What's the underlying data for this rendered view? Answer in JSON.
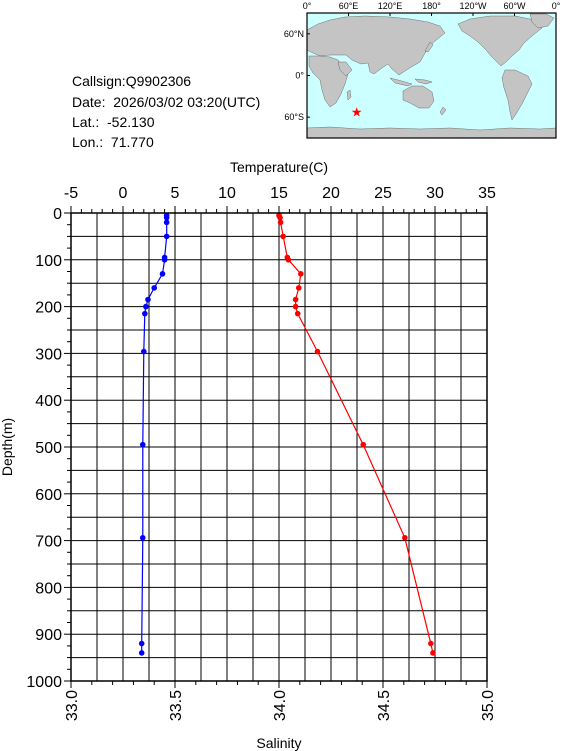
{
  "info": {
    "callsign": "Callsign:Q9902306",
    "date": "Date:  2026/03/02 03:20(UTC)",
    "lat": "Lat.:  -52.130",
    "lon": "Lon.:  71.770"
  },
  "map": {
    "lon_ticks": [
      "0°",
      "60°E",
      "120°E",
      "180°",
      "120°W",
      "60°W",
      "0°"
    ],
    "lat_ticks": [
      "60°N",
      "0°",
      "60°S"
    ],
    "float_position": {
      "lat": -52.13,
      "lon": 71.77
    },
    "colors": {
      "ocean": "#ccffff",
      "land": "#c4c4c4",
      "marker": "#ff0000"
    }
  },
  "chart_data": {
    "type": "line",
    "y_axis": {
      "label": "Depth(m)",
      "min": 0,
      "max": 1000,
      "inverted": true,
      "ticks": [
        "0",
        "100",
        "200",
        "300",
        "400",
        "500",
        "600",
        "700",
        "800",
        "900",
        "1000"
      ]
    },
    "x_top": {
      "label": "Temperature(C)",
      "min": -5,
      "max": 35,
      "ticks": [
        "-5",
        "0",
        "5",
        "10",
        "15",
        "20",
        "25",
        "30",
        "35"
      ]
    },
    "x_bottom": {
      "label": "Salinity",
      "min": 33.0,
      "max": 35.0,
      "ticks": [
        "33.0",
        "33.5",
        "34.0",
        "34.5",
        "35.0"
      ]
    },
    "grid": true,
    "series": [
      {
        "id": "temperature",
        "axis": "top",
        "color": "#ff0000",
        "points": [
          [
            15.0,
            5
          ],
          [
            15.1,
            10
          ],
          [
            15.15,
            20
          ],
          [
            15.4,
            50
          ],
          [
            15.8,
            95
          ],
          [
            15.9,
            100
          ],
          [
            17.1,
            130
          ],
          [
            16.9,
            160
          ],
          [
            16.6,
            185
          ],
          [
            16.6,
            200
          ],
          [
            16.8,
            215
          ],
          [
            18.7,
            296
          ],
          [
            23.1,
            495
          ],
          [
            27.1,
            694
          ],
          [
            29.6,
            920
          ],
          [
            29.8,
            940
          ]
        ]
      },
      {
        "id": "salinity",
        "axis": "bottom",
        "color": "#0000ff",
        "points": [
          [
            33.46,
            5
          ],
          [
            33.46,
            10
          ],
          [
            33.46,
            20
          ],
          [
            33.46,
            50
          ],
          [
            33.45,
            95
          ],
          [
            33.45,
            100
          ],
          [
            33.44,
            130
          ],
          [
            33.4,
            160
          ],
          [
            33.37,
            185
          ],
          [
            33.36,
            200
          ],
          [
            33.355,
            215
          ],
          [
            33.35,
            296
          ],
          [
            33.345,
            495
          ],
          [
            33.345,
            694
          ],
          [
            33.34,
            920
          ],
          [
            33.34,
            940
          ]
        ]
      }
    ]
  }
}
